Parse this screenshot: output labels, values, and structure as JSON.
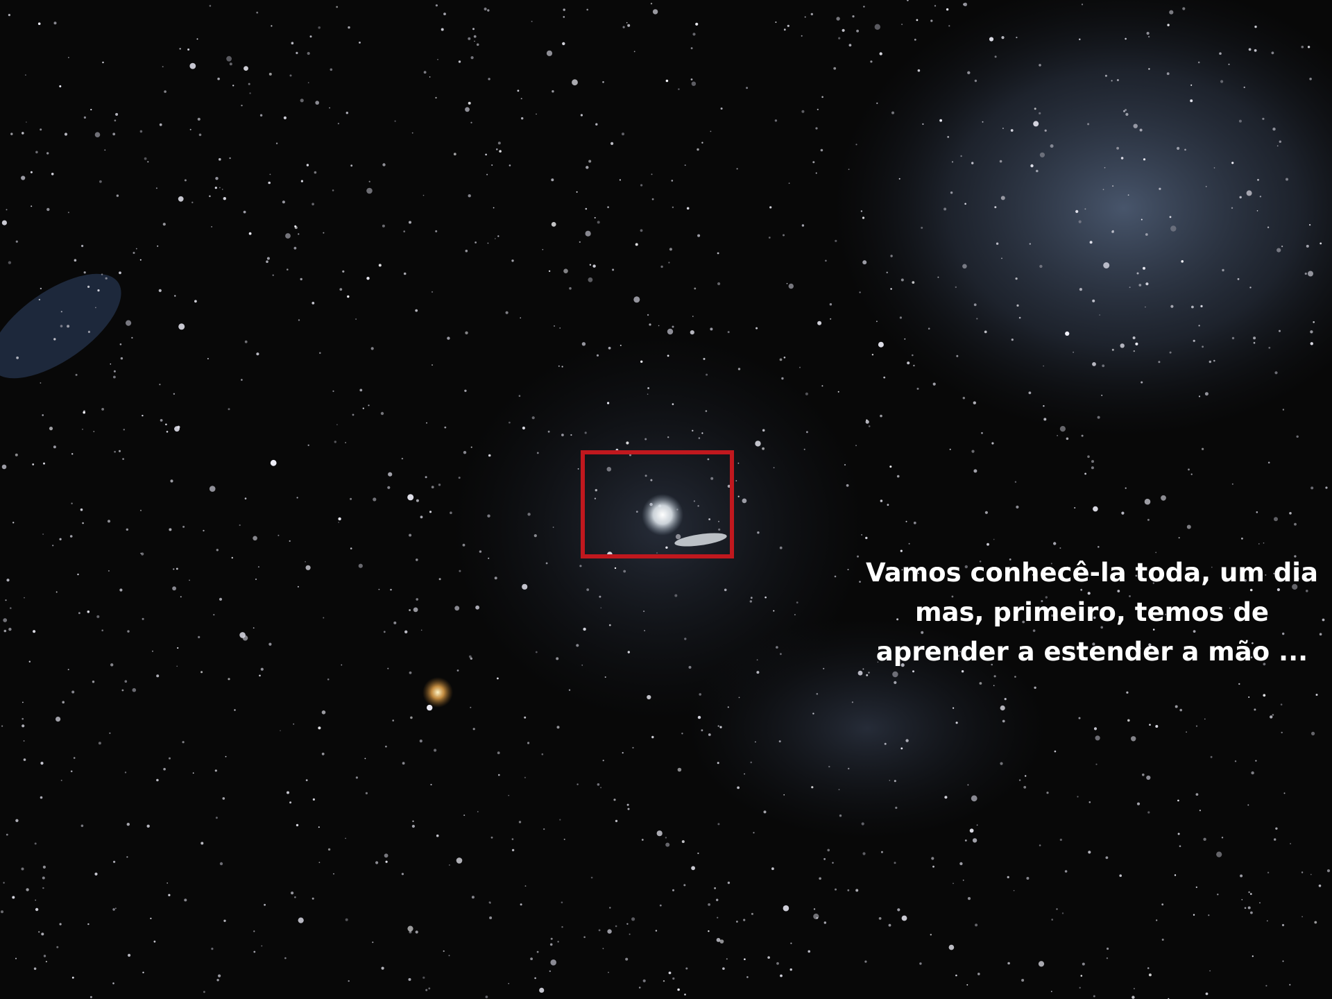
{
  "slide": {
    "text": {
      "lines": [
        "Vamos conhecê-la toda, um dia",
        "mas, primeiro,  temos de",
        "aprender a estender a mão ..."
      ]
    }
  }
}
